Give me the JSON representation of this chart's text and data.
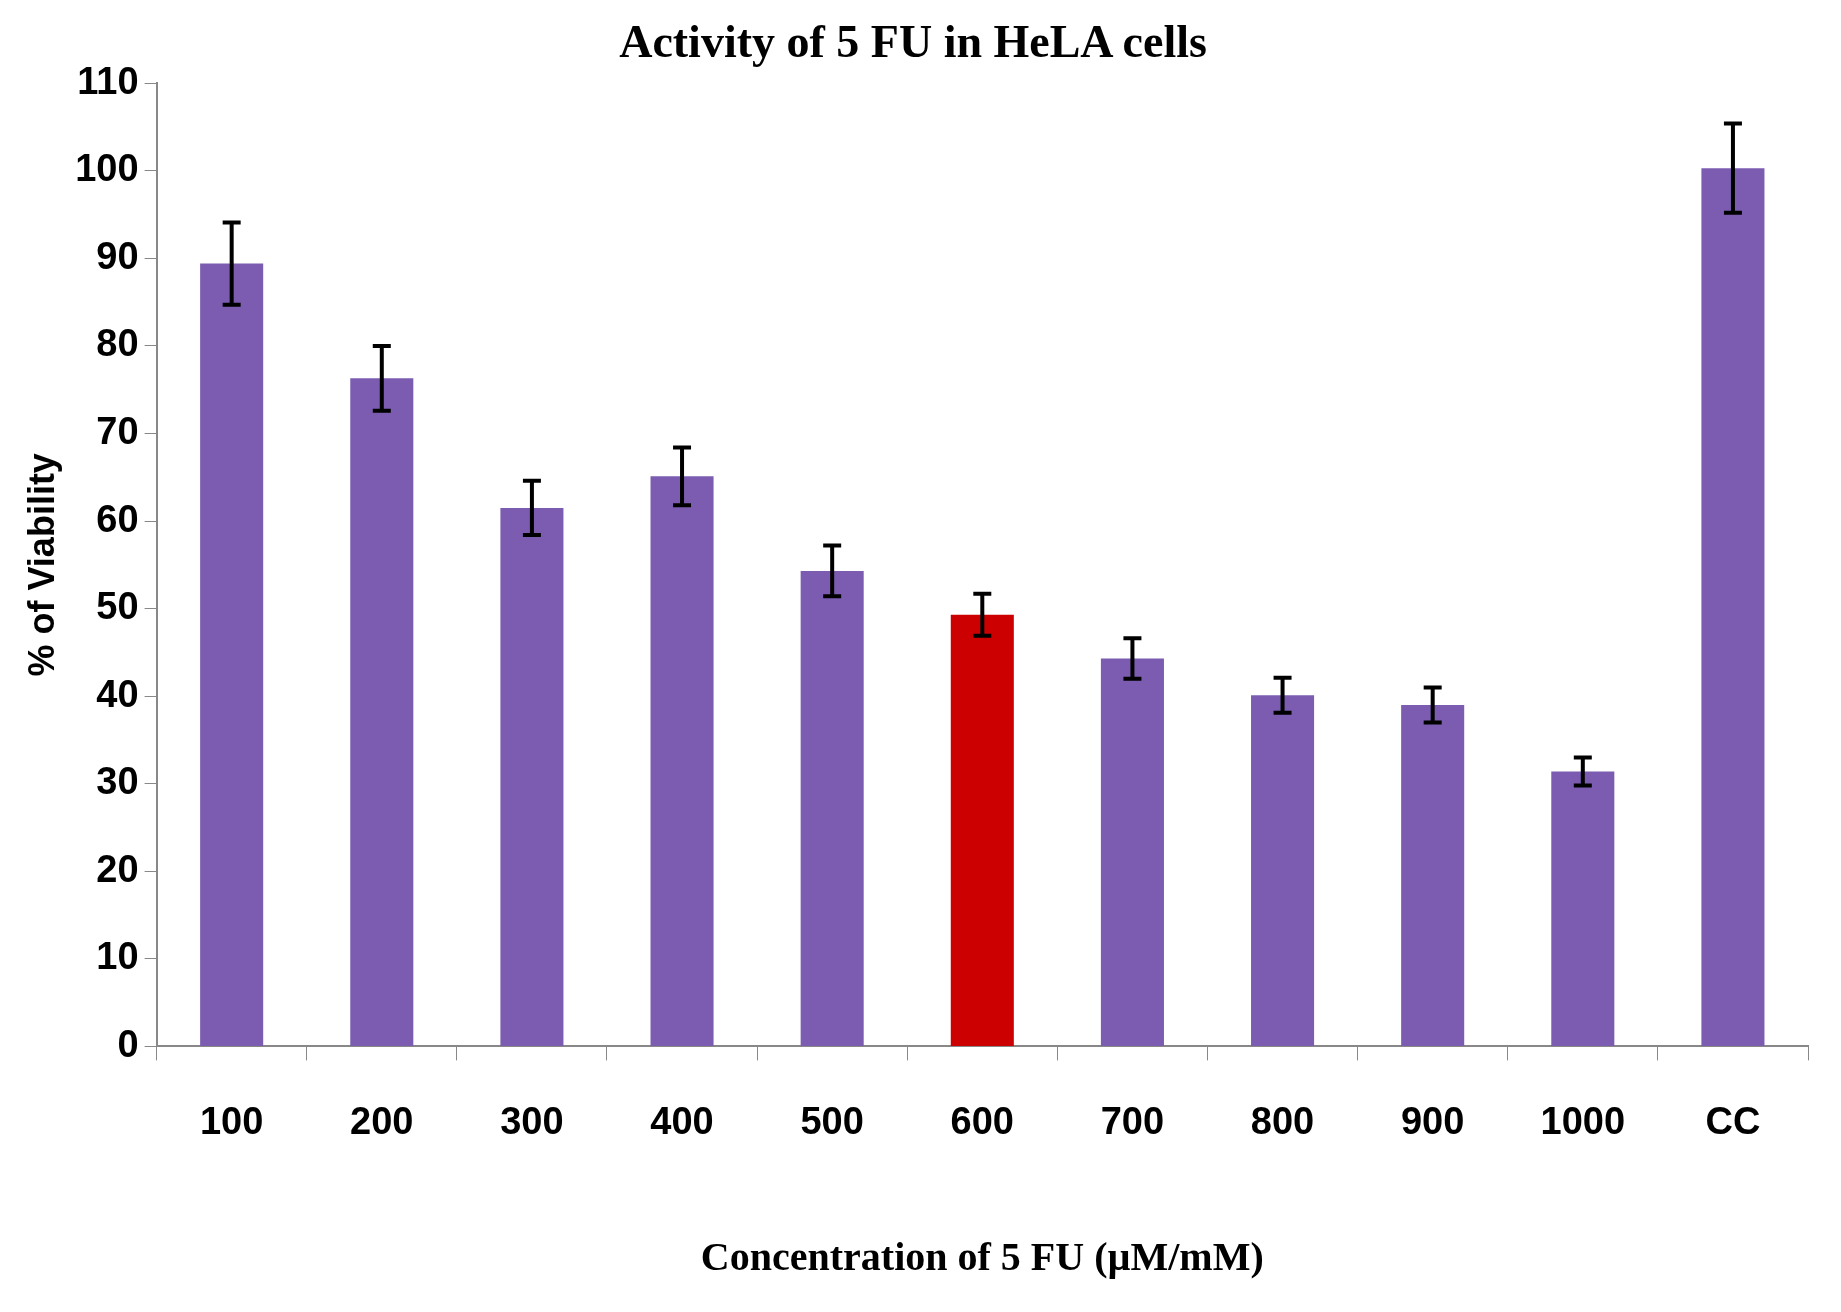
{
  "chart_data": {
    "type": "bar",
    "title": "Activity of 5 FU in HeLA cells",
    "xlabel": "Concentration of 5 FU (µM/mM)",
    "ylabel": "% of Viability",
    "categories": [
      "100",
      "200",
      "300",
      "400",
      "500",
      "600",
      "700",
      "800",
      "900",
      "1000",
      "CC"
    ],
    "values": [
      89.4,
      76.3,
      61.5,
      65.1,
      54.3,
      49.3,
      44.3,
      40.1,
      39.0,
      31.4,
      100.3
    ],
    "errors": [
      4.7,
      3.7,
      3.1,
      3.3,
      2.9,
      2.4,
      2.3,
      2.0,
      2.0,
      1.6,
      5.1
    ],
    "colors": [
      "#7b5cb0",
      "#7b5cb0",
      "#7b5cb0",
      "#7b5cb0",
      "#7b5cb0",
      "#cc0000",
      "#7b5cb0",
      "#7b5cb0",
      "#7b5cb0",
      "#7b5cb0",
      "#7b5cb0"
    ],
    "ylim": [
      0,
      110
    ],
    "yticks": [
      0,
      10,
      20,
      30,
      40,
      50,
      60,
      70,
      80,
      90,
      100,
      110
    ],
    "grid": false,
    "legend": false
  }
}
